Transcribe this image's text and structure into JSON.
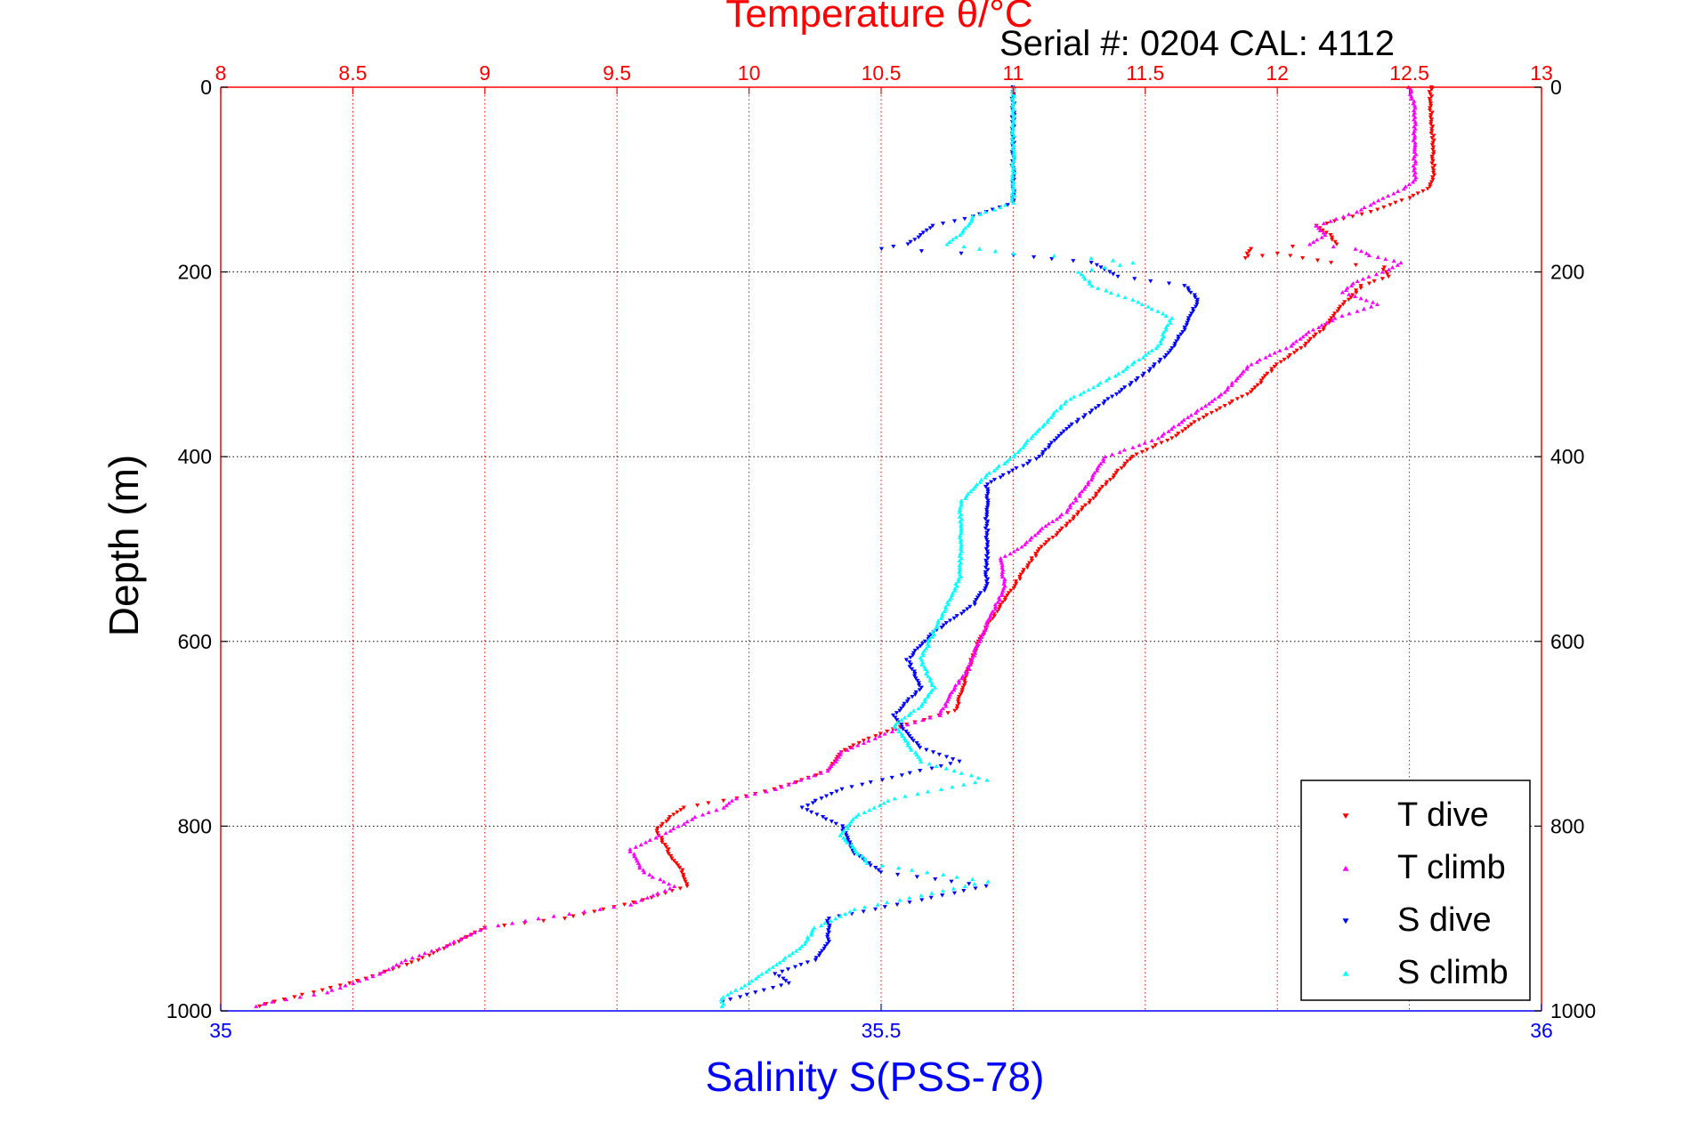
{
  "chart_data": {
    "type": "scatter",
    "title": "Temperature θ/°C",
    "subtitle": "Serial #: 0204  CAL: 4112",
    "ylabel": "Depth (m)",
    "xlabel": "Salinity S(PSS-78)",
    "y_axis": {
      "ticks": [
        0,
        200,
        400,
        600,
        800,
        1000
      ],
      "range": [
        0,
        1000
      ],
      "reversed": true
    },
    "x_axis_top": {
      "quantity": "temperature",
      "ticks": [
        "8",
        "8.5",
        "9",
        "9.5",
        "10",
        "10.5",
        "11",
        "11.5",
        "12",
        "12.5",
        "13"
      ],
      "range": [
        8,
        13
      ],
      "color": "#ff0000"
    },
    "x_axis_bottom": {
      "quantity": "salinity",
      "ticks": [
        "35",
        "35.5",
        "36"
      ],
      "range": [
        35,
        36
      ],
      "color": "#0000ff"
    },
    "grid": true,
    "legend": {
      "placement": "bottom-right"
    },
    "series": [
      {
        "name": "T dive",
        "axis": "temperature",
        "color": "#ff0000",
        "marker": "triangle-down",
        "points": [
          [
            12.58,
            0
          ],
          [
            12.58,
            20
          ],
          [
            12.59,
            60
          ],
          [
            12.59,
            100
          ],
          [
            12.57,
            110
          ],
          [
            12.5,
            120
          ],
          [
            12.35,
            135
          ],
          [
            12.15,
            150
          ],
          [
            12.2,
            160
          ],
          [
            12.22,
            170
          ],
          [
            11.9,
            175
          ],
          [
            11.88,
            185
          ],
          [
            12.0,
            180
          ],
          [
            12.2,
            190
          ],
          [
            12.4,
            195
          ],
          [
            12.42,
            205
          ],
          [
            12.32,
            215
          ],
          [
            12.25,
            235
          ],
          [
            12.18,
            260
          ],
          [
            12.1,
            280
          ],
          [
            12.0,
            300
          ],
          [
            11.9,
            330
          ],
          [
            11.7,
            360
          ],
          [
            11.6,
            380
          ],
          [
            11.45,
            400
          ],
          [
            11.35,
            430
          ],
          [
            11.25,
            460
          ],
          [
            11.18,
            480
          ],
          [
            11.1,
            500
          ],
          [
            11.05,
            520
          ],
          [
            10.98,
            550
          ],
          [
            10.93,
            570
          ],
          [
            10.87,
            600
          ],
          [
            10.83,
            630
          ],
          [
            10.8,
            660
          ],
          [
            10.78,
            675
          ],
          [
            10.6,
            690
          ],
          [
            10.45,
            705
          ],
          [
            10.35,
            720
          ],
          [
            10.3,
            740
          ],
          [
            10.1,
            760
          ],
          [
            9.95,
            770
          ],
          [
            9.75,
            780
          ],
          [
            9.7,
            790
          ],
          [
            9.65,
            805
          ],
          [
            9.7,
            830
          ],
          [
            9.75,
            850
          ],
          [
            9.77,
            865
          ],
          [
            9.6,
            880
          ],
          [
            9.3,
            900
          ],
          [
            9.0,
            910
          ],
          [
            8.9,
            925
          ],
          [
            8.75,
            945
          ],
          [
            8.55,
            965
          ],
          [
            8.35,
            980
          ],
          [
            8.2,
            990
          ],
          [
            8.15,
            995
          ]
        ]
      },
      {
        "name": "T climb",
        "axis": "temperature",
        "color": "#ff00ff",
        "marker": "triangle-up",
        "points": [
          [
            12.5,
            0
          ],
          [
            12.52,
            20
          ],
          [
            12.52,
            60
          ],
          [
            12.52,
            100
          ],
          [
            12.48,
            110
          ],
          [
            12.4,
            120
          ],
          [
            12.3,
            135
          ],
          [
            12.15,
            150
          ],
          [
            12.18,
            160
          ],
          [
            12.12,
            170
          ],
          [
            12.3,
            175
          ],
          [
            12.35,
            182
          ],
          [
            12.47,
            190
          ],
          [
            12.4,
            200
          ],
          [
            12.3,
            210
          ],
          [
            12.25,
            222
          ],
          [
            12.38,
            235
          ],
          [
            12.22,
            250
          ],
          [
            12.12,
            265
          ],
          [
            12.05,
            280
          ],
          [
            11.9,
            300
          ],
          [
            11.8,
            330
          ],
          [
            11.65,
            360
          ],
          [
            11.55,
            380
          ],
          [
            11.35,
            400
          ],
          [
            11.28,
            430
          ],
          [
            11.2,
            460
          ],
          [
            11.1,
            480
          ],
          [
            11.02,
            500
          ],
          [
            10.95,
            510
          ],
          [
            10.97,
            540
          ],
          [
            10.92,
            570
          ],
          [
            10.87,
            600
          ],
          [
            10.83,
            630
          ],
          [
            10.78,
            650
          ],
          [
            10.72,
            680
          ],
          [
            10.6,
            690
          ],
          [
            10.35,
            720
          ],
          [
            10.3,
            740
          ],
          [
            10.1,
            760
          ],
          [
            9.95,
            770
          ],
          [
            9.9,
            780
          ],
          [
            9.8,
            790
          ],
          [
            9.7,
            805
          ],
          [
            9.55,
            825
          ],
          [
            9.6,
            850
          ],
          [
            9.72,
            865
          ],
          [
            9.55,
            885
          ],
          [
            9.2,
            900
          ],
          [
            9.0,
            910
          ],
          [
            8.85,
            930
          ],
          [
            8.7,
            945
          ],
          [
            8.6,
            960
          ],
          [
            8.4,
            980
          ],
          [
            8.2,
            990
          ],
          [
            8.13,
            995
          ]
        ]
      },
      {
        "name": "S dive",
        "axis": "salinity",
        "color": "#0000ff",
        "marker": "triangle-down",
        "points": [
          [
            35.6,
            0
          ],
          [
            35.6,
            50
          ],
          [
            35.6,
            100
          ],
          [
            35.6,
            125
          ],
          [
            35.57,
            140
          ],
          [
            35.54,
            150
          ],
          [
            35.52,
            170
          ],
          [
            35.5,
            175
          ],
          [
            35.56,
            180
          ],
          [
            35.6,
            182
          ],
          [
            35.66,
            190
          ],
          [
            35.68,
            205
          ],
          [
            35.73,
            215
          ],
          [
            35.74,
            230
          ],
          [
            35.73,
            260
          ],
          [
            35.72,
            285
          ],
          [
            35.7,
            310
          ],
          [
            35.67,
            340
          ],
          [
            35.64,
            370
          ],
          [
            35.62,
            400
          ],
          [
            35.58,
            430
          ],
          [
            35.58,
            450
          ],
          [
            35.58,
            480
          ],
          [
            35.58,
            510
          ],
          [
            35.58,
            540
          ],
          [
            35.57,
            560
          ],
          [
            35.54,
            590
          ],
          [
            35.52,
            620
          ],
          [
            35.53,
            650
          ],
          [
            35.51,
            680
          ],
          [
            35.52,
            700
          ],
          [
            35.53,
            715
          ],
          [
            35.56,
            730
          ],
          [
            35.47,
            760
          ],
          [
            35.44,
            780
          ],
          [
            35.47,
            800
          ],
          [
            35.48,
            830
          ],
          [
            35.5,
            850
          ],
          [
            35.58,
            865
          ],
          [
            35.53,
            880
          ],
          [
            35.46,
            900
          ],
          [
            35.46,
            925
          ],
          [
            35.45,
            945
          ],
          [
            35.42,
            960
          ],
          [
            35.43,
            970
          ],
          [
            35.38,
            990
          ]
        ]
      },
      {
        "name": "S climb",
        "axis": "salinity",
        "color": "#00ffff",
        "marker": "triangle-up",
        "points": [
          [
            35.6,
            0
          ],
          [
            35.6,
            50
          ],
          [
            35.6,
            100
          ],
          [
            35.6,
            125
          ],
          [
            35.57,
            140
          ],
          [
            35.56,
            160
          ],
          [
            35.55,
            170
          ],
          [
            35.6,
            180
          ],
          [
            35.66,
            185
          ],
          [
            35.69,
            190
          ],
          [
            35.65,
            200
          ],
          [
            35.66,
            215
          ],
          [
            35.69,
            230
          ],
          [
            35.72,
            250
          ],
          [
            35.71,
            280
          ],
          [
            35.68,
            310
          ],
          [
            35.64,
            340
          ],
          [
            35.62,
            370
          ],
          [
            35.6,
            400
          ],
          [
            35.58,
            420
          ],
          [
            35.56,
            450
          ],
          [
            35.56,
            480
          ],
          [
            35.56,
            510
          ],
          [
            35.56,
            530
          ],
          [
            35.55,
            560
          ],
          [
            35.54,
            590
          ],
          [
            35.53,
            620
          ],
          [
            35.54,
            650
          ],
          [
            35.53,
            670
          ],
          [
            35.51,
            690
          ],
          [
            35.52,
            710
          ],
          [
            35.53,
            730
          ],
          [
            35.58,
            750
          ],
          [
            35.51,
            770
          ],
          [
            35.48,
            790
          ],
          [
            35.47,
            810
          ],
          [
            35.49,
            840
          ],
          [
            35.58,
            860
          ],
          [
            35.53,
            875
          ],
          [
            35.48,
            890
          ],
          [
            35.45,
            910
          ],
          [
            35.44,
            930
          ],
          [
            35.42,
            950
          ],
          [
            35.4,
            970
          ],
          [
            35.38,
            985
          ],
          [
            35.38,
            995
          ]
        ]
      }
    ]
  }
}
